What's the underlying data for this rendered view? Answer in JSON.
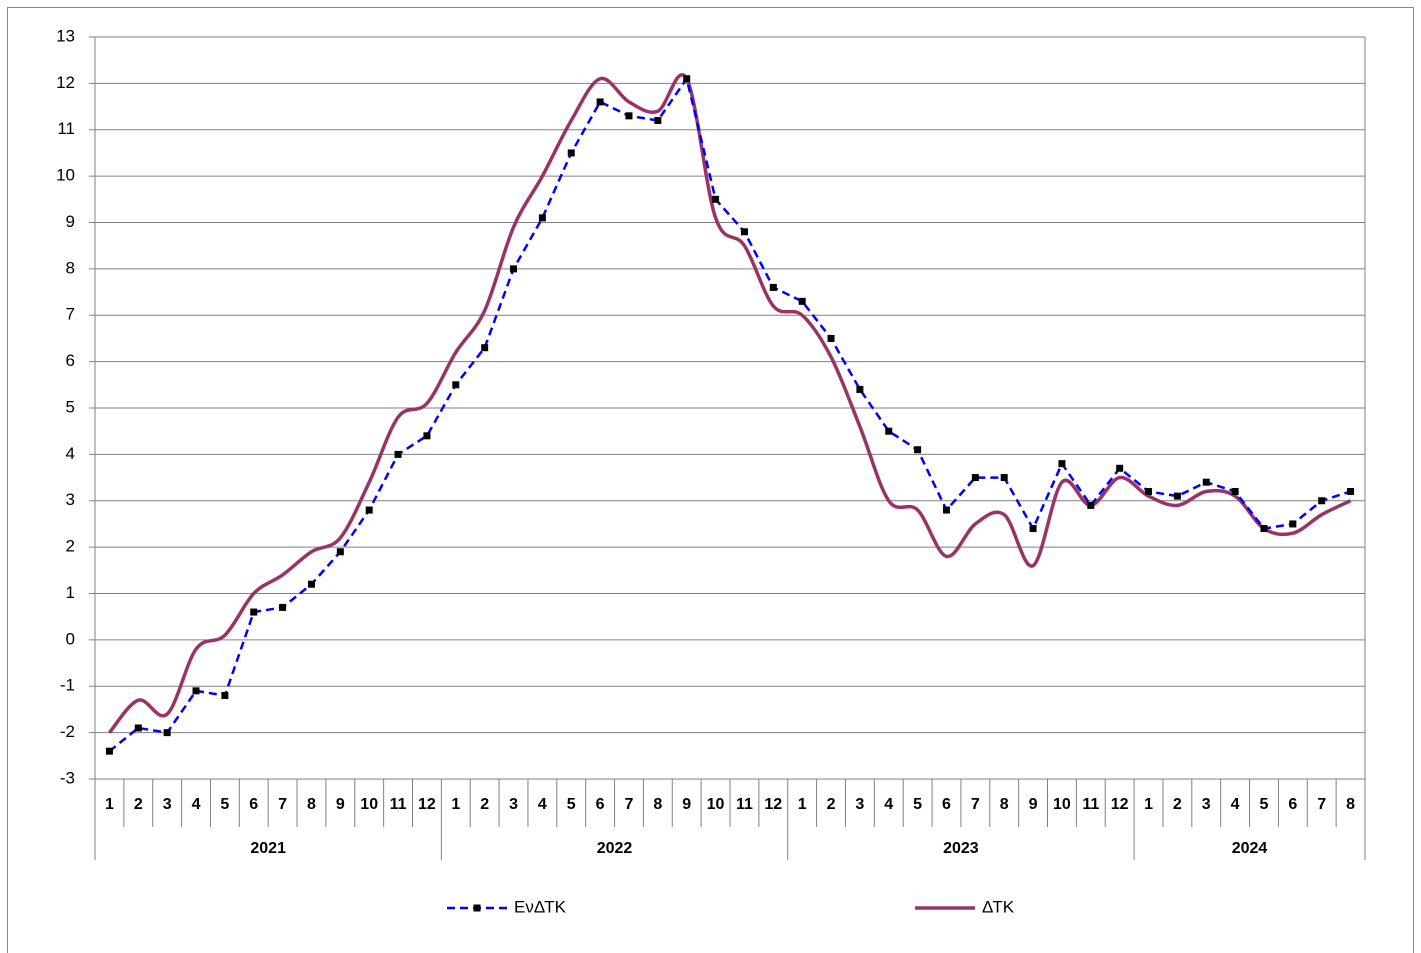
{
  "chart_data": {
    "type": "line",
    "categories": [
      "1",
      "2",
      "3",
      "4",
      "5",
      "6",
      "7",
      "8",
      "9",
      "10",
      "11",
      "12",
      "1",
      "2",
      "3",
      "4",
      "5",
      "6",
      "7",
      "8",
      "9",
      "10",
      "11",
      "12",
      "1",
      "2",
      "3",
      "4",
      "5",
      "6",
      "7",
      "8",
      "9",
      "10",
      "11",
      "12",
      "1",
      "2",
      "3",
      "4",
      "5",
      "6",
      "7",
      "8"
    ],
    "years": [
      "2021",
      "2022",
      "2023",
      "2024"
    ],
    "series": [
      {
        "name": "EνΔΤΚ",
        "color": "#0000ff",
        "dashed": true,
        "marker": "square",
        "smooth": false,
        "values": [
          -2.4,
          -1.9,
          -2.0,
          -1.1,
          -1.2,
          0.6,
          0.7,
          1.2,
          1.9,
          2.8,
          4.0,
          4.4,
          5.5,
          6.3,
          8.0,
          9.1,
          10.5,
          11.6,
          11.3,
          11.2,
          12.1,
          9.5,
          8.8,
          7.6,
          7.3,
          6.5,
          5.4,
          4.5,
          4.1,
          2.8,
          3.5,
          3.5,
          2.4,
          3.8,
          2.9,
          3.7,
          3.2,
          3.1,
          3.4,
          3.2,
          2.4,
          2.5,
          3.0,
          3.2
        ]
      },
      {
        "name": "ΔΤΚ",
        "color": "#993366",
        "dashed": false,
        "marker": null,
        "smooth": true,
        "values": [
          -2.0,
          -1.3,
          -1.6,
          -0.2,
          0.1,
          1.0,
          1.4,
          1.9,
          2.2,
          3.4,
          4.8,
          5.1,
          6.2,
          7.1,
          8.9,
          10.0,
          11.2,
          12.1,
          11.6,
          11.4,
          12.1,
          9.1,
          8.5,
          7.2,
          7.0,
          6.1,
          4.6,
          3.0,
          2.8,
          1.8,
          2.5,
          2.7,
          1.6,
          3.4,
          2.9,
          3.5,
          3.1,
          2.9,
          3.2,
          3.1,
          2.4,
          2.3,
          2.7,
          3.0
        ]
      }
    ],
    "ylim": [
      -3,
      13
    ],
    "yticks": [
      -3,
      -2,
      -1,
      0,
      1,
      2,
      3,
      4,
      5,
      6,
      7,
      8,
      9,
      10,
      11,
      12,
      13
    ],
    "grid": true,
    "legend": "bottom"
  }
}
